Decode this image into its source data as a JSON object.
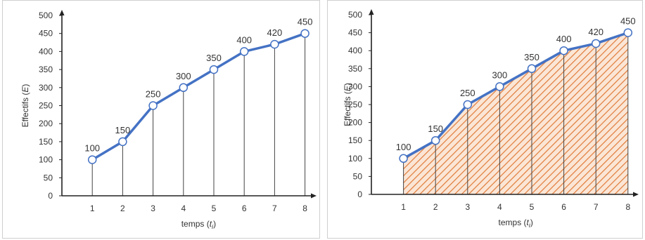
{
  "chart_data": [
    {
      "type": "line",
      "x": [
        1,
        2,
        3,
        4,
        5,
        6,
        7,
        8
      ],
      "values": [
        100,
        150,
        250,
        300,
        350,
        400,
        420,
        450
      ],
      "data_labels": [
        "100",
        "150",
        "250",
        "300",
        "350",
        "400",
        "420",
        "450"
      ],
      "xlabel_parts": [
        "temps (",
        "t",
        "i",
        ")"
      ],
      "ylabel_parts": [
        "Effectifs (",
        "E",
        ")"
      ],
      "yticks": [
        0,
        50,
        100,
        150,
        200,
        250,
        300,
        350,
        400,
        450,
        500
      ],
      "ylim": [
        0,
        500
      ],
      "xlim": [
        0,
        8
      ],
      "vertical_lines": true,
      "shaded_area": false,
      "colors": {
        "line": "#4472c4",
        "marker_fill": "#ffffff",
        "drop_line": "#444444",
        "axis": "#222222"
      }
    },
    {
      "type": "area",
      "x": [
        1,
        2,
        3,
        4,
        5,
        6,
        7,
        8
      ],
      "values": [
        100,
        150,
        250,
        300,
        350,
        400,
        420,
        450
      ],
      "data_labels": [
        "100",
        "150",
        "250",
        "300",
        "350",
        "400",
        "420",
        "450"
      ],
      "xlabel_parts": [
        "temps (",
        "t",
        "i",
        ")"
      ],
      "ylabel_parts": [
        "Effectifs (",
        "E",
        ")"
      ],
      "yticks": [
        0,
        50,
        100,
        150,
        200,
        250,
        300,
        350,
        400,
        450,
        500
      ],
      "ylim": [
        0,
        500
      ],
      "xlim": [
        0,
        8
      ],
      "vertical_lines": true,
      "shaded_area": true,
      "colors": {
        "line": "#4472c4",
        "marker_fill": "#ffffff",
        "drop_line": "#444444",
        "axis": "#222222",
        "hatch": "#e07b39",
        "hatch_bg": "#fbe6d6"
      }
    }
  ]
}
